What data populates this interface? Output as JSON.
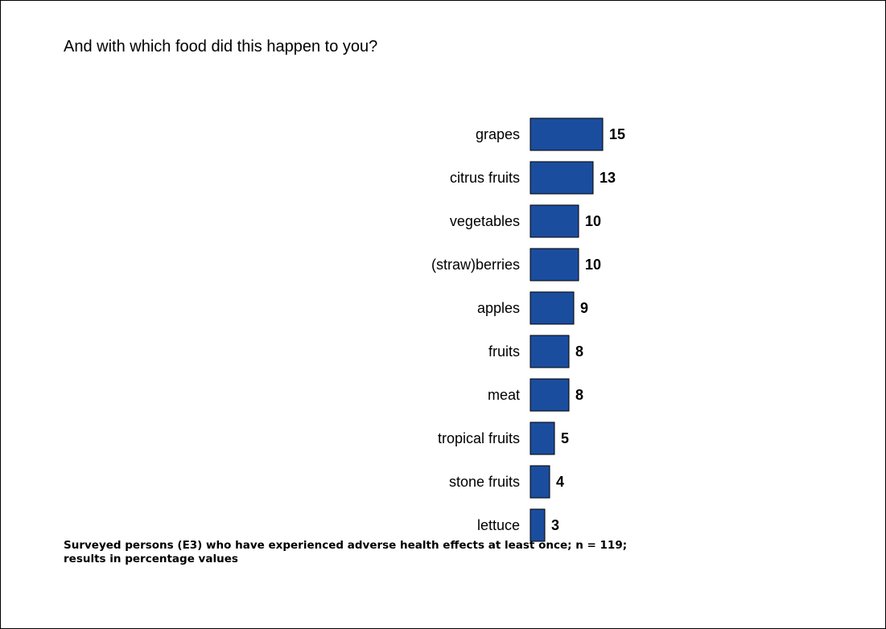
{
  "question": "And with which food did this happen to you?",
  "footnote": {
    "line1": "Surveyed persons (E3) who have experienced adverse health effects at least once; n = 119;",
    "line2": "results in percentage values"
  },
  "colors": {
    "bar_fill": "#1b4d9e",
    "bar_stroke": "#000000",
    "text": "#000000"
  },
  "chart_data": {
    "type": "bar",
    "orientation": "horizontal",
    "categories": [
      "grapes",
      "citrus fruits",
      "vegetables",
      "(straw)berries",
      "apples",
      "fruits",
      "meat",
      "tropical fruits",
      "stone fruits",
      "lettuce"
    ],
    "values": [
      15,
      13,
      10,
      10,
      9,
      8,
      8,
      5,
      4,
      3
    ],
    "xlim": [
      0,
      15
    ],
    "grid": false,
    "data_labels": true
  }
}
